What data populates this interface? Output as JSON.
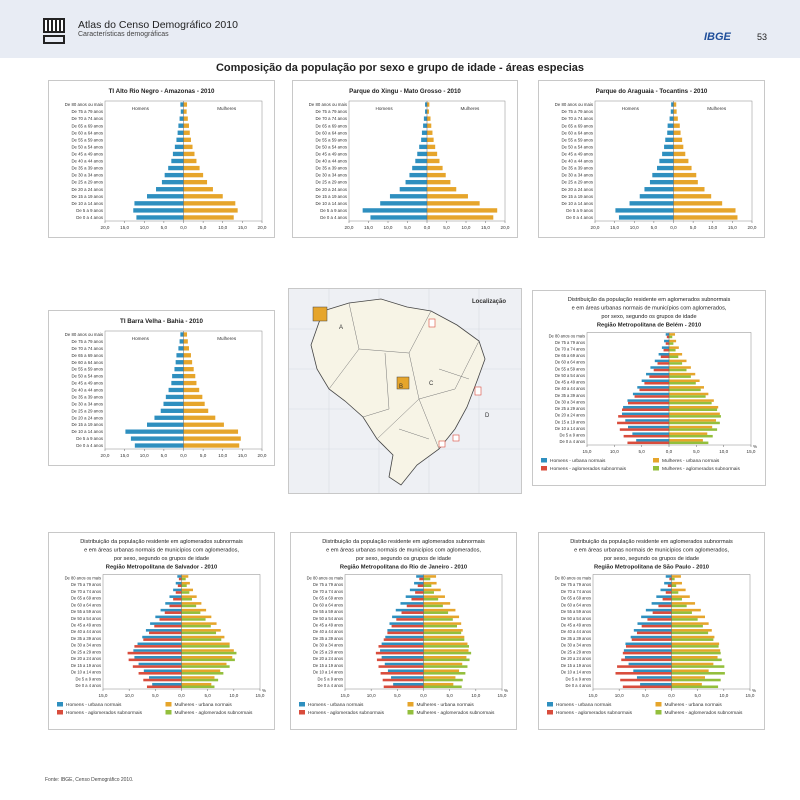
{
  "header": {
    "atlas_title": "Atlas do Censo Demográfico 2010",
    "atlas_subtitle": "Características demográficas",
    "publisher": "IBGE",
    "page_number": "53"
  },
  "main_title": "Composição da população por sexo e grupo de idade - áreas especias",
  "footer": "Fonte: IBGE, Censo Demográfico 2010.",
  "age_labels": [
    "De 80 anos ou mais",
    "De 75 a 79 anos",
    "De 70 a 74 anos",
    "De 65 a 69 anos",
    "De 60 a 64 anos",
    "De 55 a 59 anos",
    "De 50 a 54 anos",
    "De 45 a 49 anos",
    "De 40 a 44 anos",
    "De 35 a 39 anos",
    "De 30 a 34 anos",
    "De 25 a 29 anos",
    "De 20 a 24 anos",
    "De 15 a 19 anos",
    "De 10 a 14 anos",
    "De 5 a 9 anos",
    "De 0 a 4 anos"
  ],
  "colors": {
    "men_urban": "#2e8fbf",
    "women_urban": "#e6a52b",
    "men_subnormal": "#d94c3c",
    "women_subnormal": "#93bf3c"
  },
  "map": {
    "title": "Localização",
    "markers": [
      "A",
      "B",
      "C",
      "D"
    ]
  },
  "chart_data": [
    {
      "type": "bar",
      "title": "TI Alto Rio Negro - Amazonas - 2010",
      "legend": [
        "Homens",
        "Mulheres"
      ],
      "xticks": [
        "20,0",
        "15,0",
        "10,0",
        "5,0",
        "0,0",
        "5,0",
        "10,0",
        "15,0",
        "20,0"
      ],
      "xlim": [
        -20,
        20
      ],
      "series": [
        {
          "name": "Homens",
          "values": [
            0.8,
            0.7,
            1.0,
            1.3,
            1.5,
            1.8,
            2.2,
            2.7,
            3.1,
            3.9,
            4.8,
            5.5,
            7.0,
            9.3,
            12.5,
            12.8,
            12.0
          ]
        },
        {
          "name": "Mulheres",
          "values": [
            0.9,
            0.8,
            1.1,
            1.4,
            1.6,
            1.9,
            2.3,
            2.8,
            3.3,
            4.1,
            5.0,
            6.0,
            7.5,
            10.0,
            13.2,
            13.8,
            12.8
          ]
        }
      ]
    },
    {
      "type": "bar",
      "title": "Parque do Xingu - Mato Grosso - 2010",
      "legend": [
        "Homens",
        "Mulheres"
      ],
      "xticks": [
        "20,0",
        "15,0",
        "10,0",
        "5,0",
        "0,0",
        "5,0",
        "10,0",
        "15,0",
        "20,0"
      ],
      "xlim": [
        -20,
        20
      ],
      "series": [
        {
          "name": "Homens",
          "values": [
            0.5,
            0.5,
            0.8,
            1.0,
            1.3,
            1.5,
            2.0,
            2.5,
            3.0,
            3.8,
            4.5,
            5.5,
            7.0,
            9.5,
            12.0,
            16.5,
            14.5
          ]
        },
        {
          "name": "Mulheres",
          "values": [
            0.6,
            0.5,
            0.9,
            1.1,
            1.4,
            1.7,
            2.1,
            2.6,
            3.2,
            4.0,
            4.8,
            6.0,
            7.5,
            10.5,
            13.5,
            18.0,
            17.0
          ]
        }
      ]
    },
    {
      "type": "bar",
      "title": "Parque do Araguaia - Tocantins - 2010",
      "legend": [
        "Homens",
        "Mulheres"
      ],
      "xticks": [
        "20,0",
        "15,0",
        "10,0",
        "5,0",
        "0,0",
        "5,0",
        "10,0",
        "15,0",
        "20,0"
      ],
      "xlim": [
        -20,
        20
      ],
      "series": [
        {
          "name": "Homens",
          "values": [
            0.6,
            0.7,
            1.0,
            1.5,
            1.6,
            2.1,
            2.4,
            2.9,
            3.6,
            4.2,
            5.4,
            6.0,
            7.4,
            8.6,
            11.2,
            14.8,
            13.9
          ]
        },
        {
          "name": "Mulheres",
          "values": [
            0.7,
            0.8,
            1.1,
            1.6,
            1.8,
            2.2,
            2.5,
            3.0,
            3.8,
            4.6,
            5.8,
            6.2,
            7.9,
            9.6,
            12.4,
            15.8,
            16.3
          ]
        }
      ]
    },
    {
      "type": "bar",
      "title": "TI Barra Velha - Bahia - 2010",
      "legend": [
        "Homens",
        "Mulheres"
      ],
      "xticks": [
        "20,0",
        "15,0",
        "10,0",
        "5,0",
        "0,0",
        "5,0",
        "10,0",
        "15,0",
        "20,0"
      ],
      "xlim": [
        -20,
        20
      ],
      "series": [
        {
          "name": "Homens",
          "values": [
            0.8,
            1.0,
            1.3,
            1.8,
            2.0,
            2.3,
            2.9,
            3.1,
            3.8,
            4.5,
            5.1,
            5.8,
            7.4,
            9.3,
            14.8,
            13.4,
            12.4
          ]
        },
        {
          "name": "Mulheres",
          "values": [
            0.9,
            1.1,
            1.4,
            1.9,
            2.2,
            2.6,
            3.0,
            3.3,
            4.0,
            4.8,
            5.4,
            6.3,
            8.1,
            10.3,
            13.9,
            14.6,
            14.2
          ]
        }
      ]
    },
    {
      "type": "bar",
      "title_lines": [
        "Distribuição da população residente em aglomerados subnormais",
        "e em áreas urbanas normais de municípios com aglomerados,",
        "por sexo, segundo os grupos de idade"
      ],
      "title_bold": "Região Metropolitana de Belém - 2010",
      "unit": "%",
      "xticks": [
        "15,0",
        "10,0",
        "5,0",
        "0,0",
        "5,0",
        "10,0",
        "15,0"
      ],
      "xlim": [
        -15,
        15
      ],
      "legend": [
        "Homens - urbana normais",
        "Mulheres - urbana normais",
        "Homens - aglomerados subnormais",
        "Mulheres - aglomerados subnormais"
      ],
      "series": [
        {
          "name": "Homens - urbana normais",
          "values": [
            0.6,
            0.9,
            1.3,
            1.9,
            2.6,
            3.4,
            4.2,
            5.0,
            5.8,
            6.6,
            7.6,
            8.4,
            8.6,
            8.0,
            7.5,
            6.7,
            6.0
          ]
        },
        {
          "name": "Mulheres - urbana normais",
          "values": [
            1.1,
            1.3,
            1.8,
            2.4,
            3.2,
            4.0,
            4.8,
            5.6,
            6.4,
            7.2,
            8.2,
            9.0,
            9.3,
            8.6,
            7.9,
            7.0,
            6.2
          ]
        },
        {
          "name": "Homens - aglomerados subnormais",
          "values": [
            0.4,
            0.6,
            1.0,
            1.5,
            2.1,
            2.8,
            3.6,
            4.5,
            5.4,
            6.3,
            7.5,
            8.6,
            9.3,
            9.5,
            9.0,
            8.3,
            7.6
          ]
        },
        {
          "name": "Mulheres - aglomerados subnormais",
          "values": [
            0.6,
            0.8,
            1.2,
            1.7,
            2.4,
            3.2,
            4.0,
            4.9,
            5.8,
            6.7,
            7.8,
            8.8,
            9.5,
            9.3,
            8.8,
            8.0,
            7.2
          ]
        }
      ]
    },
    {
      "type": "bar",
      "title_lines": [
        "Distribuição da população residente em aglomerados subnormais",
        "e em áreas urbanas normais de municípios com aglomerados,",
        "por sexo, segundo os grupos de idade"
      ],
      "title_bold": "Região Metropolitana de Salvador - 2010",
      "unit": "%",
      "xticks": [
        "15,0",
        "10,0",
        "5,0",
        "0,0",
        "5,0",
        "10,0",
        "15,0"
      ],
      "xlim": [
        -15,
        15
      ],
      "legend": [
        "Homens - urbana normais",
        "Mulheres - urbana normais",
        "Homens - aglomerados subnormais",
        "Mulheres - aglomerados subnormais"
      ],
      "series": [
        {
          "name": "Homens - urbana normais",
          "values": [
            0.8,
            1.1,
            1.6,
            2.3,
            3.1,
            4.0,
            5.0,
            6.0,
            6.8,
            7.5,
            8.4,
            9.2,
            9.0,
            8.2,
            7.2,
            6.2,
            5.6
          ]
        },
        {
          "name": "Mulheres - urbana normais",
          "values": [
            1.3,
            1.6,
            2.2,
            2.9,
            3.8,
            4.7,
            5.7,
            6.7,
            7.5,
            8.2,
            9.2,
            10.0,
            9.7,
            8.6,
            7.4,
            6.3,
            5.7
          ]
        },
        {
          "name": "Homens - aglomerados subnormais",
          "values": [
            0.5,
            0.7,
            1.1,
            1.6,
            2.3,
            3.2,
            4.2,
            5.2,
            6.2,
            7.3,
            9.0,
            10.3,
            10.1,
            9.3,
            8.2,
            7.3,
            6.6
          ]
        },
        {
          "name": "Mulheres - aglomerados subnormais",
          "values": [
            0.8,
            1.0,
            1.5,
            2.0,
            2.8,
            3.6,
            4.6,
            5.6,
            6.6,
            7.6,
            9.2,
            10.5,
            10.2,
            9.2,
            8.0,
            7.0,
            6.3
          ]
        }
      ]
    },
    {
      "type": "bar",
      "title_lines": [
        "Distribuição da população residente em aglomerados subnormais",
        "e em áreas urbanas normais de municípios com aglomerados,",
        "por sexo, segundo os grupos de idade"
      ],
      "title_bold": "Região Metropolitana do Rio de Janeiro - 2010",
      "unit": "%",
      "xticks": [
        "15,0",
        "10,0",
        "5,0",
        "0,0",
        "5,0",
        "10,0",
        "15,0"
      ],
      "xlim": [
        -15,
        15
      ],
      "legend": [
        "Homens - urbana normais",
        "Mulheres - urbana normais",
        "Homens - aglomerados subnormais",
        "Mulheres - aglomerados subnormais"
      ],
      "series": [
        {
          "name": "Homens - urbana normais",
          "values": [
            1.4,
            1.8,
            2.6,
            3.4,
            4.4,
            5.3,
            6.0,
            6.5,
            6.9,
            7.3,
            8.0,
            8.3,
            8.0,
            7.4,
            6.8,
            6.2,
            5.8
          ]
        },
        {
          "name": "Mulheres - urbana normais",
          "values": [
            2.4,
            2.5,
            3.3,
            4.1,
            5.1,
            6.1,
            6.8,
            7.2,
            7.5,
            7.8,
            8.4,
            8.6,
            8.2,
            7.4,
            6.8,
            6.1,
            5.7
          ]
        },
        {
          "name": "Homens - aglomerados subnormais",
          "values": [
            0.8,
            1.1,
            1.6,
            2.3,
            3.2,
            4.2,
            5.2,
            6.1,
            6.9,
            7.6,
            8.6,
            9.1,
            8.9,
            8.6,
            8.2,
            7.8,
            7.6
          ]
        },
        {
          "name": "Mulheres - aglomerados subnormais",
          "values": [
            1.3,
            1.5,
            2.0,
            2.8,
            3.7,
            4.7,
            5.6,
            6.4,
            7.2,
            7.8,
            8.7,
            9.1,
            8.8,
            8.4,
            8.0,
            7.5,
            7.3
          ]
        }
      ]
    },
    {
      "type": "bar",
      "title_lines": [
        "Distribuição da população residente em aglomerados subnormais",
        "e em áreas urbanas normais de municípios com aglomerados,",
        "por sexo, segundo os grupos de idade"
      ],
      "title_bold": "Região Metropolitana de São Paulo - 2010",
      "unit": "%",
      "xticks": [
        "15,0",
        "10,0",
        "5,0",
        "0,0",
        "5,0",
        "10,0",
        "15,0"
      ],
      "xlim": [
        -15,
        15
      ],
      "legend": [
        "Homens - urbana normais",
        "Mulheres - urbana normais",
        "Homens - aglomerados subnormais",
        "Mulheres - aglomerados subnormais"
      ],
      "series": [
        {
          "name": "Homens - urbana normais",
          "values": [
            1.1,
            1.4,
            2.1,
            2.9,
            3.8,
            4.9,
            5.8,
            6.5,
            7.2,
            7.8,
            8.8,
            9.1,
            8.9,
            8.2,
            7.3,
            6.6,
            6.0
          ]
        },
        {
          "name": "Mulheres - urbana normais",
          "values": [
            1.8,
            2.0,
            2.7,
            3.5,
            4.5,
            5.6,
            6.4,
            7.1,
            7.7,
            8.2,
            9.1,
            9.3,
            8.8,
            8.0,
            7.1,
            6.4,
            5.8
          ]
        },
        {
          "name": "Homens - aglomerados subnormais",
          "values": [
            0.4,
            0.7,
            1.1,
            1.7,
            2.5,
            3.6,
            4.6,
            5.7,
            6.6,
            7.6,
            8.7,
            9.3,
            9.6,
            10.4,
            10.7,
            9.8,
            9.3
          ]
        },
        {
          "name": "Mulheres - aglomerados subnormais",
          "values": [
            0.6,
            0.9,
            1.3,
            2.0,
            2.9,
            3.9,
            5.0,
            6.0,
            7.0,
            8.0,
            9.0,
            9.4,
            9.6,
            10.1,
            10.2,
            9.4,
            8.9
          ]
        }
      ]
    }
  ]
}
